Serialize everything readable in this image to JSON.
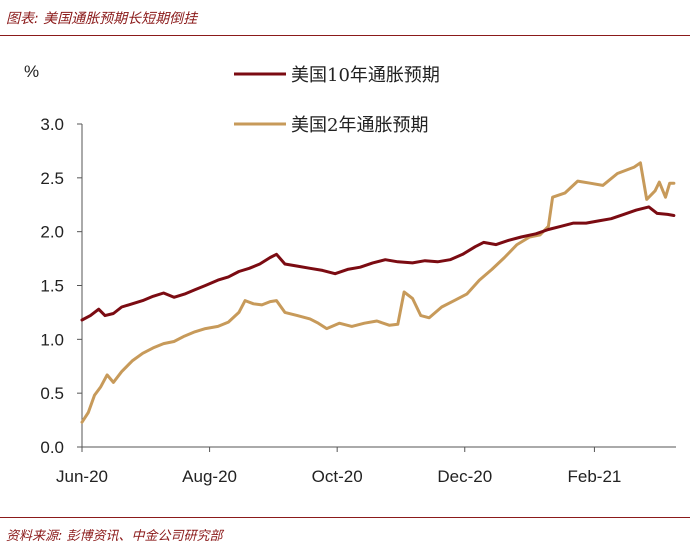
{
  "figure_title": "图表: 美国通胀预期长短期倒挂",
  "source_note": "资料来源: 彭博资讯、中金公司研究部",
  "chart_data": {
    "type": "line",
    "ylabel": "%",
    "ylim": [
      0,
      3.0
    ],
    "yticks": [
      0.0,
      0.5,
      1.0,
      1.5,
      2.0,
      2.5,
      3.0
    ],
    "ytick_labels": [
      "0.0",
      "0.5",
      "1.0",
      "1.5",
      "2.0",
      "2.5",
      "3.0"
    ],
    "xlim": [
      "2020-06-01",
      "2021-03-12"
    ],
    "xticks": [
      "2020-06-01",
      "2020-08-01",
      "2020-10-01",
      "2020-12-01",
      "2021-02-01"
    ],
    "xtick_labels": [
      "Jun-20",
      "Aug-20",
      "Oct-20",
      "Dec-20",
      "Feb-21"
    ],
    "grid": false,
    "legend_position": "top",
    "series": [
      {
        "name": "美国10年通胀预期",
        "color": "#7b0b12",
        "points": [
          [
            "2020-06-01",
            1.18
          ],
          [
            "2020-06-05",
            1.22
          ],
          [
            "2020-06-09",
            1.28
          ],
          [
            "2020-06-12",
            1.22
          ],
          [
            "2020-06-16",
            1.24
          ],
          [
            "2020-06-20",
            1.3
          ],
          [
            "2020-06-25",
            1.33
          ],
          [
            "2020-06-30",
            1.36
          ],
          [
            "2020-07-05",
            1.4
          ],
          [
            "2020-07-10",
            1.43
          ],
          [
            "2020-07-15",
            1.39
          ],
          [
            "2020-07-20",
            1.42
          ],
          [
            "2020-07-25",
            1.46
          ],
          [
            "2020-07-30",
            1.5
          ],
          [
            "2020-08-05",
            1.55
          ],
          [
            "2020-08-10",
            1.58
          ],
          [
            "2020-08-15",
            1.63
          ],
          [
            "2020-08-20",
            1.66
          ],
          [
            "2020-08-25",
            1.7
          ],
          [
            "2020-08-30",
            1.76
          ],
          [
            "2020-09-02",
            1.79
          ],
          [
            "2020-09-06",
            1.7
          ],
          [
            "2020-09-12",
            1.68
          ],
          [
            "2020-09-18",
            1.66
          ],
          [
            "2020-09-24",
            1.64
          ],
          [
            "2020-09-30",
            1.61
          ],
          [
            "2020-10-06",
            1.65
          ],
          [
            "2020-10-12",
            1.67
          ],
          [
            "2020-10-18",
            1.71
          ],
          [
            "2020-10-24",
            1.74
          ],
          [
            "2020-10-30",
            1.72
          ],
          [
            "2020-11-06",
            1.71
          ],
          [
            "2020-11-12",
            1.73
          ],
          [
            "2020-11-18",
            1.72
          ],
          [
            "2020-11-24",
            1.74
          ],
          [
            "2020-11-30",
            1.79
          ],
          [
            "2020-12-06",
            1.86
          ],
          [
            "2020-12-10",
            1.9
          ],
          [
            "2020-12-16",
            1.88
          ],
          [
            "2020-12-22",
            1.92
          ],
          [
            "2020-12-28",
            1.95
          ],
          [
            "2021-01-04",
            1.98
          ],
          [
            "2021-01-10",
            2.02
          ],
          [
            "2021-01-16",
            2.05
          ],
          [
            "2021-01-22",
            2.08
          ],
          [
            "2021-01-28",
            2.08
          ],
          [
            "2021-02-03",
            2.1
          ],
          [
            "2021-02-09",
            2.12
          ],
          [
            "2021-02-15",
            2.16
          ],
          [
            "2021-02-21",
            2.2
          ],
          [
            "2021-02-27",
            2.23
          ],
          [
            "2021-03-03",
            2.17
          ],
          [
            "2021-03-08",
            2.16
          ],
          [
            "2021-03-11",
            2.15
          ]
        ]
      },
      {
        "name": "美国2年通胀预期",
        "color": "#c79a5a",
        "points": [
          [
            "2020-06-01",
            0.23
          ],
          [
            "2020-06-04",
            0.32
          ],
          [
            "2020-06-07",
            0.48
          ],
          [
            "2020-06-10",
            0.56
          ],
          [
            "2020-06-13",
            0.67
          ],
          [
            "2020-06-16",
            0.6
          ],
          [
            "2020-06-20",
            0.7
          ],
          [
            "2020-06-25",
            0.8
          ],
          [
            "2020-06-30",
            0.87
          ],
          [
            "2020-07-05",
            0.92
          ],
          [
            "2020-07-10",
            0.96
          ],
          [
            "2020-07-15",
            0.98
          ],
          [
            "2020-07-20",
            1.03
          ],
          [
            "2020-07-25",
            1.07
          ],
          [
            "2020-07-30",
            1.1
          ],
          [
            "2020-08-05",
            1.12
          ],
          [
            "2020-08-10",
            1.16
          ],
          [
            "2020-08-15",
            1.25
          ],
          [
            "2020-08-18",
            1.36
          ],
          [
            "2020-08-22",
            1.33
          ],
          [
            "2020-08-26",
            1.32
          ],
          [
            "2020-08-30",
            1.35
          ],
          [
            "2020-09-02",
            1.36
          ],
          [
            "2020-09-06",
            1.25
          ],
          [
            "2020-09-12",
            1.22
          ],
          [
            "2020-09-18",
            1.19
          ],
          [
            "2020-09-22",
            1.15
          ],
          [
            "2020-09-26",
            1.1
          ],
          [
            "2020-10-02",
            1.15
          ],
          [
            "2020-10-08",
            1.12
          ],
          [
            "2020-10-14",
            1.15
          ],
          [
            "2020-10-20",
            1.17
          ],
          [
            "2020-10-26",
            1.13
          ],
          [
            "2020-10-30",
            1.14
          ],
          [
            "2020-11-02",
            1.44
          ],
          [
            "2020-11-06",
            1.38
          ],
          [
            "2020-11-10",
            1.22
          ],
          [
            "2020-11-14",
            1.2
          ],
          [
            "2020-11-20",
            1.3
          ],
          [
            "2020-11-26",
            1.36
          ],
          [
            "2020-12-02",
            1.42
          ],
          [
            "2020-12-08",
            1.55
          ],
          [
            "2020-12-14",
            1.65
          ],
          [
            "2020-12-20",
            1.76
          ],
          [
            "2020-12-26",
            1.88
          ],
          [
            "2021-01-01",
            1.95
          ],
          [
            "2021-01-06",
            1.97
          ],
          [
            "2021-01-10",
            2.05
          ],
          [
            "2021-01-12",
            2.32
          ],
          [
            "2021-01-18",
            2.36
          ],
          [
            "2021-01-24",
            2.47
          ],
          [
            "2021-01-30",
            2.45
          ],
          [
            "2021-02-05",
            2.43
          ],
          [
            "2021-02-12",
            2.54
          ],
          [
            "2021-02-20",
            2.6
          ],
          [
            "2021-02-23",
            2.64
          ],
          [
            "2021-02-26",
            2.3
          ],
          [
            "2021-03-02",
            2.38
          ],
          [
            "2021-03-04",
            2.46
          ],
          [
            "2021-03-07",
            2.32
          ],
          [
            "2021-03-09",
            2.45
          ],
          [
            "2021-03-11",
            2.45
          ]
        ]
      }
    ]
  }
}
